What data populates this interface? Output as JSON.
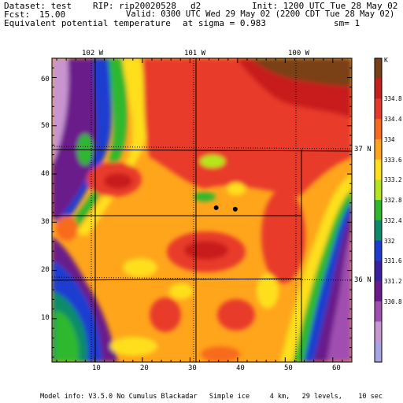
{
  "header": {
    "dataset": "Dataset: test",
    "rip": "RIP: rip20020528",
    "domain": "d2",
    "init": "Init: 1200 UTC Tue 28 May 02",
    "fcst": "Fcst:",
    "fcst_value": "15.00",
    "valid": "Valid: 0300 UTC Wed 29 May 02 (2200 CDT Tue 28 May 02)",
    "field": "Equivalent potential temperature",
    "sigma": "at sigma = 0.983",
    "smoothing": "sm= 1"
  },
  "map": {
    "top_axis_labels": [
      "102 W",
      "101 W",
      "100 W"
    ],
    "right_axis_labels": [
      "37 N",
      "36 N"
    ],
    "x_ticks": [
      "10",
      "20",
      "30",
      "40",
      "50",
      "60"
    ],
    "y_ticks": [
      "10",
      "20",
      "30",
      "40",
      "50",
      "60"
    ],
    "grid_range": {
      "x": [
        1,
        64
      ],
      "y": [
        1,
        64
      ]
    },
    "stations": [
      {
        "x": 35.5,
        "y": 33.0
      },
      {
        "x": 39.5,
        "y": 32.7
      }
    ]
  },
  "colorbar": {
    "unit": "K",
    "labels": [
      "334.8",
      "334.4",
      "334",
      "333.6",
      "333.2",
      "332.8",
      "332.4",
      "332",
      "331.6",
      "331.2",
      "330.8"
    ],
    "colors": [
      "#7a3f16",
      "#c81e1e",
      "#e83a2a",
      "#f86a1c",
      "#ffa51c",
      "#ffdf1c",
      "#b5e61d",
      "#2db82d",
      "#0a8c6a",
      "#1c3cd0",
      "#3a1fa0",
      "#6a1a8a",
      "#a04fb0",
      "#c895d0",
      "#a5a5e6"
    ]
  },
  "footer": {
    "model_info": "Model info: V3.5.0 No Cumulus Blackadar   Simple ice     4 km,   29 levels,    10 sec"
  }
}
